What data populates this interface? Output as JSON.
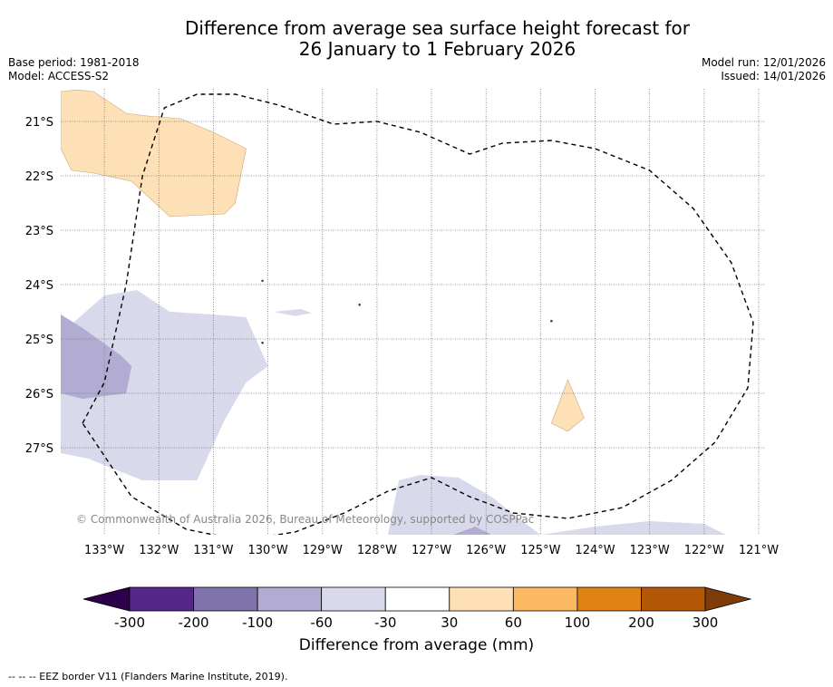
{
  "title": {
    "line1": "Difference from average sea surface height forecast for",
    "line2": "26 January to 1 February 2026"
  },
  "meta": {
    "base_period": "Base period: 1981-2018",
    "model": "Model: ACCESS-S2",
    "model_run": "Model run: 12/01/2026",
    "issued": "Issued: 14/01/2026"
  },
  "map": {
    "lon_range": [
      -133.8,
      -120.9
    ],
    "lat_range": [
      -28.6,
      -20.4
    ],
    "lat_labels": [
      "21°S",
      "22°S",
      "23°S",
      "24°S",
      "25°S",
      "26°S",
      "27°S"
    ],
    "lon_labels": [
      "133°W",
      "132°W",
      "131°W",
      "130°W",
      "129°W",
      "128°W",
      "127°W",
      "126°W",
      "125°W",
      "124°W",
      "123°W",
      "122°W",
      "121°W"
    ],
    "copyright": "© Commonwealth of Australia 2026, Bureau of Meteorology, supported by COSPPac",
    "regions": [
      {
        "name": "positive-anomaly-northwest",
        "category": "30 to 60",
        "color": "#fee0b6",
        "lonlat": [
          [
            -133.8,
            -20.45
          ],
          [
            -133.5,
            -20.42
          ],
          [
            -133.2,
            -20.45
          ],
          [
            -132.6,
            -20.85
          ],
          [
            -132.2,
            -20.9
          ],
          [
            -131.6,
            -20.95
          ],
          [
            -131.0,
            -21.2
          ],
          [
            -130.4,
            -21.5
          ],
          [
            -130.6,
            -22.5
          ],
          [
            -130.8,
            -22.7
          ],
          [
            -131.8,
            -22.75
          ],
          [
            -132.5,
            -22.1
          ],
          [
            -133.2,
            -21.95
          ],
          [
            -133.6,
            -21.9
          ],
          [
            -133.8,
            -21.5
          ]
        ]
      },
      {
        "name": "positive-anomaly-southeast",
        "category": "30 to 60",
        "color": "#fee0b6",
        "lonlat": [
          [
            -124.5,
            -25.75
          ],
          [
            -124.2,
            -26.45
          ],
          [
            -124.5,
            -26.7
          ],
          [
            -124.8,
            -26.55
          ]
        ]
      },
      {
        "name": "negative-anomaly-west-light",
        "category": "-60 to -30",
        "color": "#d8daeb",
        "lonlat": [
          [
            -133.8,
            -24.9
          ],
          [
            -133.0,
            -24.2
          ],
          [
            -132.4,
            -24.1
          ],
          [
            -131.8,
            -24.5
          ],
          [
            -131.0,
            -24.55
          ],
          [
            -130.4,
            -24.6
          ],
          [
            -130.0,
            -25.5
          ],
          [
            -130.4,
            -25.8
          ],
          [
            -130.8,
            -26.5
          ],
          [
            -131.3,
            -27.6
          ],
          [
            -132.3,
            -27.6
          ],
          [
            -133.3,
            -27.2
          ],
          [
            -133.8,
            -27.1
          ]
        ]
      },
      {
        "name": "negative-anomaly-west-medium",
        "category": "-100 to -60",
        "color": "#b2abd2",
        "lonlat": [
          [
            -133.8,
            -24.55
          ],
          [
            -133.4,
            -24.8
          ],
          [
            -132.7,
            -25.3
          ],
          [
            -132.5,
            -25.5
          ],
          [
            -132.6,
            -26.0
          ],
          [
            -133.4,
            -26.1
          ],
          [
            -133.8,
            -26.0
          ]
        ]
      },
      {
        "name": "negative-anomaly-south-light",
        "category": "-60 to -30",
        "color": "#d8daeb",
        "lonlat": [
          [
            -127.8,
            -28.6
          ],
          [
            -127.6,
            -27.6
          ],
          [
            -127.2,
            -27.5
          ],
          [
            -126.5,
            -27.55
          ],
          [
            -125.9,
            -27.9
          ],
          [
            -125.4,
            -28.3
          ],
          [
            -125.0,
            -28.6
          ],
          [
            -124.0,
            -28.45
          ],
          [
            -123.0,
            -28.35
          ],
          [
            -122.0,
            -28.4
          ],
          [
            -121.6,
            -28.6
          ]
        ]
      },
      {
        "name": "negative-anomaly-south-medium",
        "category": "-100 to -60",
        "color": "#b2abd2",
        "lonlat": [
          [
            -126.6,
            -28.6
          ],
          [
            -126.2,
            -28.45
          ],
          [
            -125.9,
            -28.6
          ]
        ]
      },
      {
        "name": "negative-anomaly-islet",
        "category": "-60 to -30",
        "color": "#d8daeb",
        "lonlat": [
          [
            -129.9,
            -24.5
          ],
          [
            -129.4,
            -24.45
          ],
          [
            -129.2,
            -24.52
          ],
          [
            -129.5,
            -24.58
          ]
        ]
      }
    ],
    "eez_border_lonlat": [
      [
        -133.4,
        -26.55
      ],
      [
        -133.0,
        -25.8
      ],
      [
        -132.6,
        -24.0
      ],
      [
        -132.3,
        -22.0
      ],
      [
        -131.9,
        -20.75
      ],
      [
        -131.3,
        -20.5
      ],
      [
        -130.6,
        -20.5
      ],
      [
        -129.8,
        -20.7
      ],
      [
        -128.8,
        -21.05
      ],
      [
        -128.0,
        -21.0
      ],
      [
        -127.2,
        -21.2
      ],
      [
        -126.3,
        -21.6
      ],
      [
        -125.7,
        -21.4
      ],
      [
        -124.8,
        -21.35
      ],
      [
        -124.0,
        -21.5
      ],
      [
        -123.0,
        -21.9
      ],
      [
        -122.2,
        -22.6
      ],
      [
        -121.5,
        -23.6
      ],
      [
        -121.1,
        -24.7
      ],
      [
        -121.2,
        -25.9
      ],
      [
        -121.8,
        -26.9
      ],
      [
        -122.6,
        -27.6
      ],
      [
        -123.5,
        -28.1
      ],
      [
        -124.5,
        -28.3
      ],
      [
        -125.5,
        -28.2
      ],
      [
        -126.3,
        -27.9
      ],
      [
        -127.0,
        -27.55
      ],
      [
        -127.8,
        -27.8
      ],
      [
        -128.6,
        -28.2
      ],
      [
        -129.5,
        -28.55
      ],
      [
        -130.5,
        -28.7
      ],
      [
        -131.5,
        -28.5
      ],
      [
        -132.5,
        -27.9
      ],
      [
        -133.4,
        -26.55
      ]
    ],
    "islands_lonlat": [
      [
        -128.32,
        -24.37
      ],
      [
        -130.1,
        -25.07
      ],
      [
        -124.8,
        -24.67
      ],
      [
        -130.1,
        -23.93
      ]
    ]
  },
  "colorbar": {
    "ticks": [
      "-300",
      "-200",
      "-100",
      "-60",
      "-30",
      "30",
      "60",
      "100",
      "200",
      "300"
    ],
    "colors": [
      "#542788",
      "#8073ac",
      "#b2abd2",
      "#d8daeb",
      "#ffffff",
      "#fee0b6",
      "#fdb863",
      "#e08214",
      "#b35806"
    ],
    "under_color": "#2d004b",
    "over_color": "#7f3b08",
    "title": "Difference from average (mm)"
  },
  "eez_note": "--  --  -- EEZ border V11 (Flanders Marine Institute, 2019)."
}
